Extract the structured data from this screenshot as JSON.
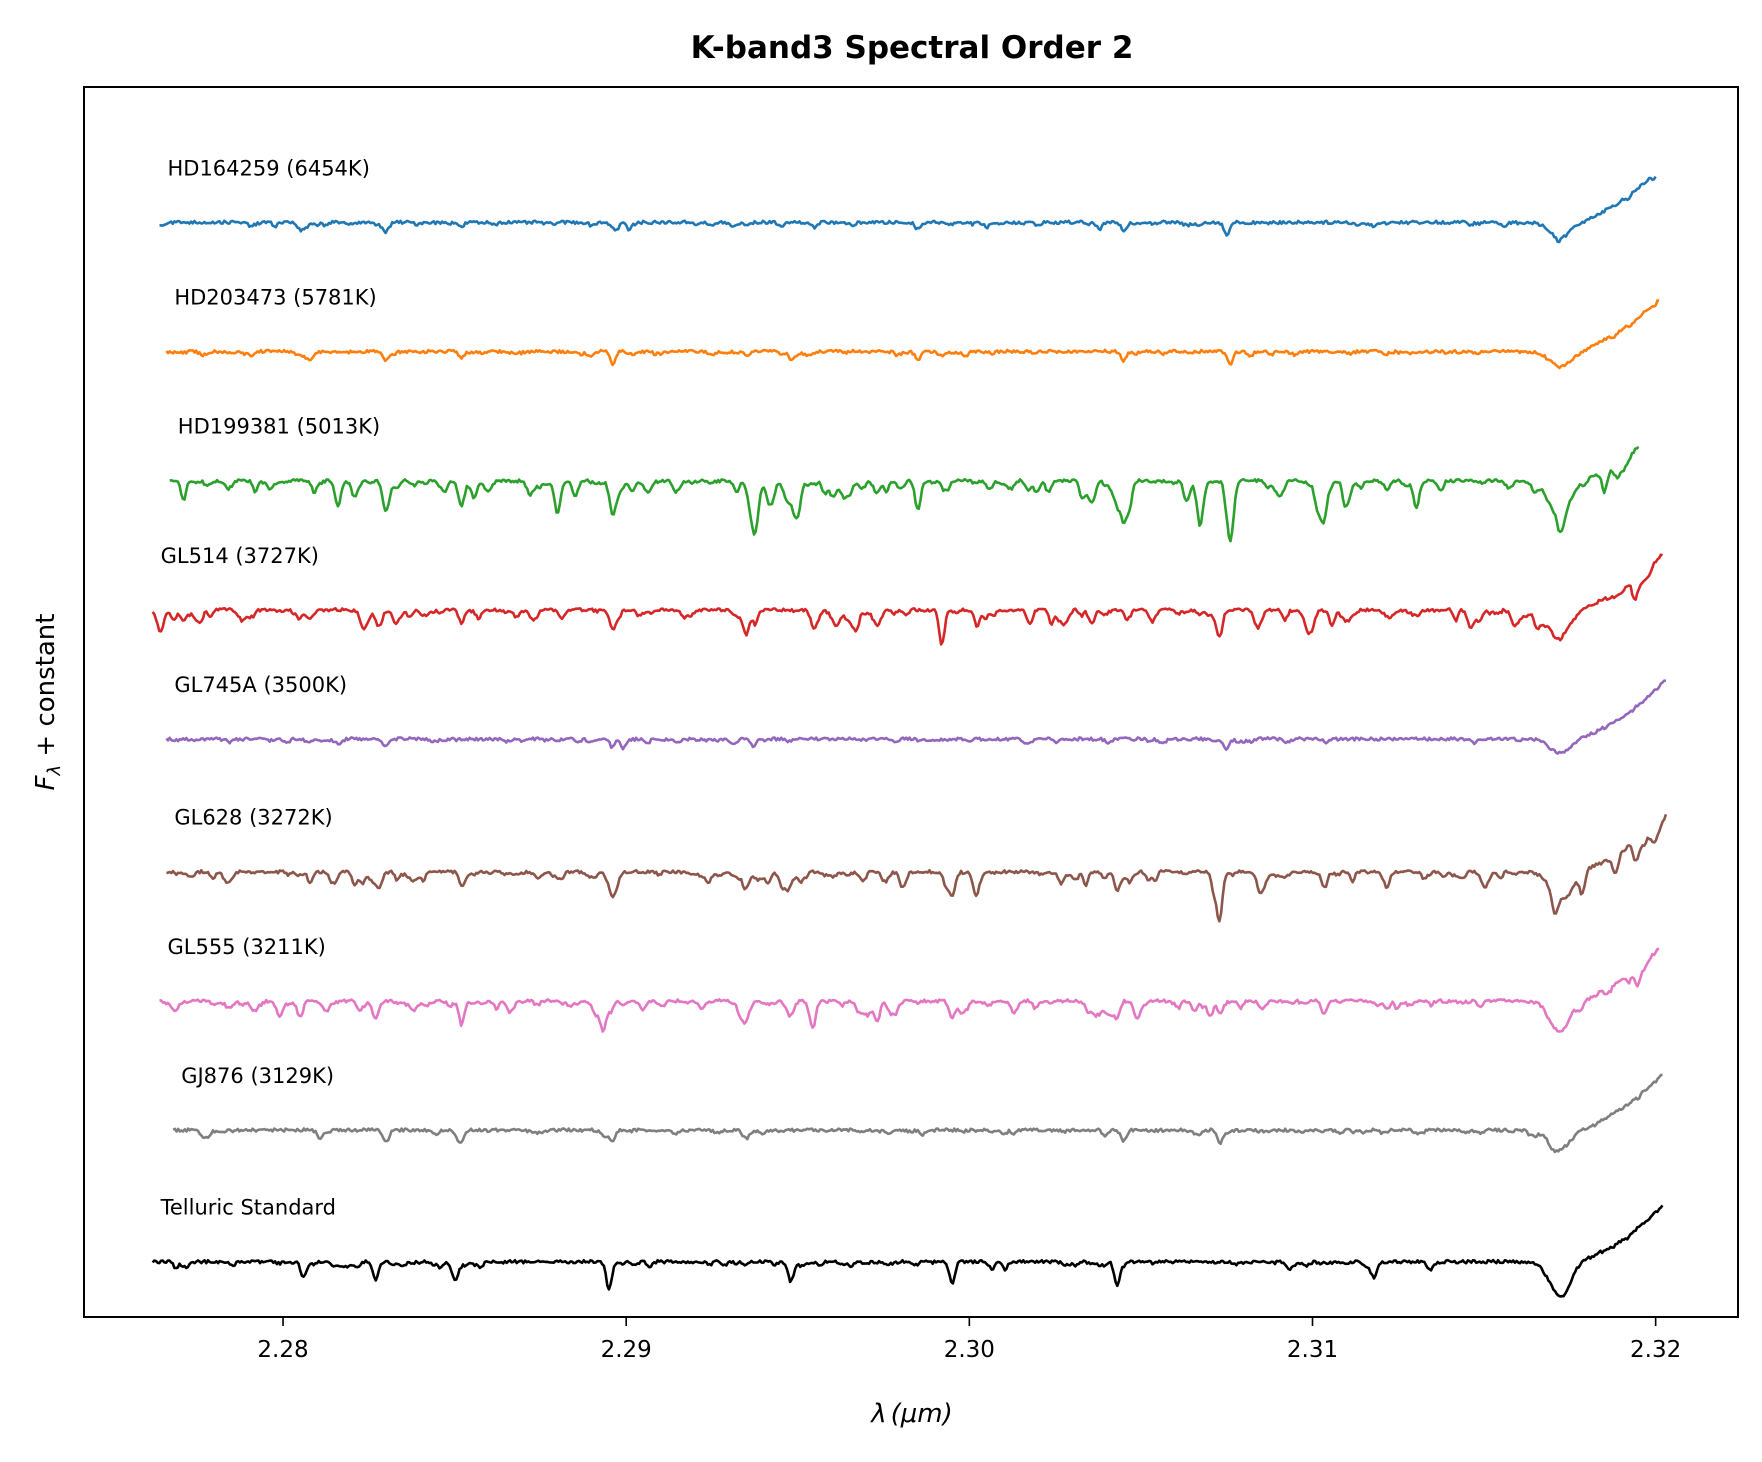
{
  "chart_data": {
    "type": "line",
    "title": "K-band3 Spectral Order 2",
    "xlabel_symbol": "λ",
    "xlabel_unit": "(μm)",
    "ylabel_symbol": "F",
    "ylabel_sub": "λ",
    "ylabel_rest": " + constant",
    "xlim": [
      2.2742,
      2.3224
    ],
    "ylim": [
      0,
      10
    ],
    "grid": false,
    "legend": "inline labels above each spectrum",
    "x_ticks": [
      {
        "value": 2.28,
        "label": "2.28"
      },
      {
        "value": 2.29,
        "label": "2.29"
      },
      {
        "value": 2.3,
        "label": "2.30"
      },
      {
        "value": 2.31,
        "label": "2.31"
      },
      {
        "value": 2.32,
        "label": "2.32"
      }
    ],
    "y_ticks": [],
    "series": [
      {
        "name": "HD164259 (6454K)",
        "color": "#1f77b4",
        "offset": 8.9,
        "depth_scale": 0.55,
        "x_range": [
          2.2764,
          2.32
        ],
        "lines": [
          {
            "x": 2.2805,
            "depth": 0.1,
            "width": 8e-05
          },
          {
            "x": 2.283,
            "depth": 0.14,
            "width": 9e-05
          },
          {
            "x": 2.2852,
            "depth": 0.08,
            "width": 7e-05
          },
          {
            "x": 2.2897,
            "depth": 0.12,
            "width": 8e-05
          },
          {
            "x": 2.2901,
            "depth": 0.1,
            "width": 7e-05
          },
          {
            "x": 2.2955,
            "depth": 0.08,
            "width": 8e-05
          },
          {
            "x": 2.2985,
            "depth": 0.1,
            "width": 8e-05
          },
          {
            "x": 2.3005,
            "depth": 0.07,
            "width": 7e-05
          },
          {
            "x": 2.3038,
            "depth": 0.1,
            "width": 8e-05
          },
          {
            "x": 2.3045,
            "depth": 0.12,
            "width": 8e-05
          },
          {
            "x": 2.3075,
            "depth": 0.18,
            "width": 8e-05
          },
          {
            "x": 2.3172,
            "depth": 0.2,
            "width": 0.0003
          }
        ]
      },
      {
        "name": "HD203473 (5781K)",
        "color": "#ff7f0e",
        "offset": 7.85,
        "depth_scale": 0.6,
        "x_range": [
          2.2766,
          2.3201
        ],
        "lines": [
          {
            "x": 2.2808,
            "depth": 0.12,
            "width": 8e-05
          },
          {
            "x": 2.283,
            "depth": 0.12,
            "width": 8e-05
          },
          {
            "x": 2.2852,
            "depth": 0.09,
            "width": 7e-05
          },
          {
            "x": 2.2896,
            "depth": 0.12,
            "width": 8e-05
          },
          {
            "x": 2.2948,
            "depth": 0.09,
            "width": 8e-05
          },
          {
            "x": 2.2985,
            "depth": 0.11,
            "width": 8e-05
          },
          {
            "x": 2.3045,
            "depth": 0.13,
            "width": 8e-05
          },
          {
            "x": 2.3076,
            "depth": 0.18,
            "width": 8e-05
          },
          {
            "x": 2.3172,
            "depth": 0.2,
            "width": 0.0003
          }
        ]
      },
      {
        "name": "HD199381 (5013K)",
        "color": "#2ca02c",
        "offset": 6.8,
        "depth_scale": 1.1,
        "x_range": [
          2.2767,
          2.3195
        ],
        "lines": [
          {
            "x": 2.2771,
            "depth": 0.14,
            "width": 7e-05
          },
          {
            "x": 2.2816,
            "depth": 0.17,
            "width": 9e-05
          },
          {
            "x": 2.283,
            "depth": 0.22,
            "width": 9e-05
          },
          {
            "x": 2.2852,
            "depth": 0.18,
            "width": 9e-05
          },
          {
            "x": 2.288,
            "depth": 0.22,
            "width": 9e-05
          },
          {
            "x": 2.2896,
            "depth": 0.14,
            "width": 8e-05
          },
          {
            "x": 2.2937,
            "depth": 0.28,
            "width": 0.00012
          },
          {
            "x": 2.295,
            "depth": 0.26,
            "width": 8e-05
          },
          {
            "x": 2.2985,
            "depth": 0.22,
            "width": 8e-05
          },
          {
            "x": 2.3045,
            "depth": 0.24,
            "width": 8e-05
          },
          {
            "x": 2.3076,
            "depth": 0.22,
            "width": 8e-05
          },
          {
            "x": 2.3172,
            "depth": 0.26,
            "width": 0.0003
          }
        ]
      },
      {
        "name": "GL514 (3727K)",
        "color": "#d62728",
        "offset": 5.75,
        "depth_scale": 0.9,
        "x_range": [
          2.2762,
          2.3202
        ],
        "lines": [
          {
            "x": 2.2771,
            "depth": 0.1,
            "width": 7e-05
          },
          {
            "x": 2.2828,
            "depth": 0.14,
            "width": 9e-05
          },
          {
            "x": 2.2852,
            "depth": 0.12,
            "width": 8e-05
          },
          {
            "x": 2.2896,
            "depth": 0.13,
            "width": 8e-05
          },
          {
            "x": 2.2935,
            "depth": 0.22,
            "width": 0.0001
          },
          {
            "x": 2.2992,
            "depth": 0.24,
            "width": 8e-05
          },
          {
            "x": 2.3073,
            "depth": 0.22,
            "width": 8e-05
          },
          {
            "x": 2.3172,
            "depth": 0.22,
            "width": 0.0003
          }
        ]
      },
      {
        "name": "GL745A (3500K)",
        "color": "#9467bd",
        "offset": 4.7,
        "depth_scale": 0.55,
        "x_range": [
          2.2766,
          2.3203
        ],
        "lines": [
          {
            "x": 2.283,
            "depth": 0.1,
            "width": 8e-05
          },
          {
            "x": 2.2896,
            "depth": 0.12,
            "width": 8e-05
          },
          {
            "x": 2.2899,
            "depth": 0.12,
            "width": 7e-05
          },
          {
            "x": 2.2937,
            "depth": 0.1,
            "width": 9e-05
          },
          {
            "x": 2.3075,
            "depth": 0.15,
            "width": 8e-05
          },
          {
            "x": 2.3172,
            "depth": 0.2,
            "width": 0.0003
          }
        ]
      },
      {
        "name": "GL628 (3272K)",
        "color": "#8c564b",
        "offset": 3.62,
        "depth_scale": 0.9,
        "x_range": [
          2.2766,
          2.3203
        ],
        "lines": [
          {
            "x": 2.2808,
            "depth": 0.1,
            "width": 8e-05
          },
          {
            "x": 2.2828,
            "depth": 0.14,
            "width": 9e-05
          },
          {
            "x": 2.2852,
            "depth": 0.1,
            "width": 8e-05
          },
          {
            "x": 2.2896,
            "depth": 0.18,
            "width": 8e-05
          },
          {
            "x": 2.2935,
            "depth": 0.12,
            "width": 0.0001
          },
          {
            "x": 2.2995,
            "depth": 0.14,
            "width": 8e-05
          },
          {
            "x": 2.3043,
            "depth": 0.16,
            "width": 8e-05
          },
          {
            "x": 2.3073,
            "depth": 0.22,
            "width": 8e-05
          },
          {
            "x": 2.3172,
            "depth": 0.22,
            "width": 0.0003
          }
        ]
      },
      {
        "name": "GL555 (3211K)",
        "color": "#e377c2",
        "offset": 2.57,
        "depth_scale": 0.9,
        "x_range": [
          2.2764,
          2.3201
        ],
        "lines": [
          {
            "x": 2.2805,
            "depth": 0.1,
            "width": 8e-05
          },
          {
            "x": 2.2827,
            "depth": 0.16,
            "width": 9e-05
          },
          {
            "x": 2.2852,
            "depth": 0.12,
            "width": 8e-05
          },
          {
            "x": 2.2893,
            "depth": 0.14,
            "width": 8e-05
          },
          {
            "x": 2.2935,
            "depth": 0.16,
            "width": 0.0001
          },
          {
            "x": 2.2995,
            "depth": 0.16,
            "width": 8e-05
          },
          {
            "x": 2.3043,
            "depth": 0.16,
            "width": 8e-05
          },
          {
            "x": 2.3172,
            "depth": 0.24,
            "width": 0.0003
          }
        ]
      },
      {
        "name": "GJ876 (3129K)",
        "color": "#7f7f7f",
        "offset": 1.52,
        "depth_scale": 0.7,
        "x_range": [
          2.2768,
          2.3202
        ],
        "lines": [
          {
            "x": 2.283,
            "depth": 0.14,
            "width": 9e-05
          },
          {
            "x": 2.2852,
            "depth": 0.1,
            "width": 8e-05
          },
          {
            "x": 2.2896,
            "depth": 0.12,
            "width": 8e-05
          },
          {
            "x": 2.2935,
            "depth": 0.1,
            "width": 0.0001
          },
          {
            "x": 2.3045,
            "depth": 0.12,
            "width": 8e-05
          },
          {
            "x": 2.3073,
            "depth": 0.14,
            "width": 8e-05
          },
          {
            "x": 2.3172,
            "depth": 0.22,
            "width": 0.0003
          }
        ]
      },
      {
        "name": "Telluric Standard",
        "color": "#000000",
        "offset": 0.45,
        "depth_scale": 0.8,
        "x_range": [
          2.2762,
          2.3202
        ],
        "lines": [
          {
            "x": 2.2806,
            "depth": 0.16,
            "width": 8e-05
          },
          {
            "x": 2.2827,
            "depth": 0.18,
            "width": 8e-05
          },
          {
            "x": 2.285,
            "depth": 0.18,
            "width": 8e-05
          },
          {
            "x": 2.2895,
            "depth": 0.28,
            "width": 8e-05
          },
          {
            "x": 2.2948,
            "depth": 0.2,
            "width": 8e-05
          },
          {
            "x": 2.2995,
            "depth": 0.22,
            "width": 8e-05
          },
          {
            "x": 2.3043,
            "depth": 0.24,
            "width": 8e-05
          },
          {
            "x": 2.3118,
            "depth": 0.14,
            "width": 7e-05
          },
          {
            "x": 2.3172,
            "depth": 0.34,
            "width": 0.0003
          }
        ]
      }
    ]
  }
}
